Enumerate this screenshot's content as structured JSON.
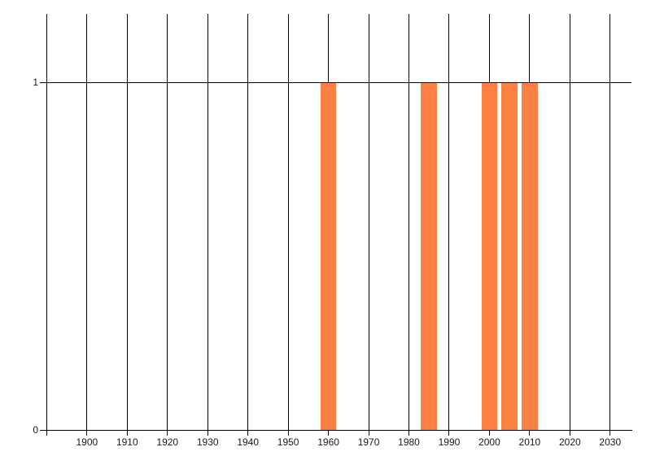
{
  "chart_data": {
    "type": "bar",
    "title": "",
    "xlabel": "",
    "ylabel": "",
    "x": [
      1960,
      1985,
      2000,
      2005,
      2010
    ],
    "values": [
      1,
      1,
      1,
      1,
      1
    ],
    "bar_width_years": 4,
    "xlim": [
      1888.3,
      2035.3
    ],
    "ylim": [
      0,
      1.197
    ],
    "grid": true,
    "legend": false,
    "x_gridlines": [
      1890,
      1900,
      1910,
      1920,
      1930,
      1940,
      1950,
      1960,
      1970,
      1980,
      1990,
      2000,
      2010,
      2020,
      2030
    ],
    "x_tick_labels": [
      {
        "x": 1900,
        "label": "1900"
      },
      {
        "x": 1910,
        "label": "1910"
      },
      {
        "x": 1920,
        "label": "1920"
      },
      {
        "x": 1930,
        "label": "1930"
      },
      {
        "x": 1940,
        "label": "1940"
      },
      {
        "x": 1950,
        "label": "1950"
      },
      {
        "x": 1960,
        "label": "1960"
      },
      {
        "x": 1970,
        "label": "1970"
      },
      {
        "x": 1980,
        "label": "1980"
      },
      {
        "x": 1990,
        "label": "1990"
      },
      {
        "x": 2000,
        "label": "2000"
      },
      {
        "x": 2010,
        "label": "2010"
      },
      {
        "x": 2020,
        "label": "2020"
      },
      {
        "x": 2030,
        "label": "2030"
      }
    ],
    "y_ticks": [
      {
        "value": 0,
        "label": "0"
      },
      {
        "value": 1,
        "label": "1"
      }
    ],
    "colors": {
      "bar": "#FD8143",
      "grid": "#000000",
      "axis": "#000000",
      "text": "#1a1a1a",
      "background": "#ffffff"
    }
  }
}
